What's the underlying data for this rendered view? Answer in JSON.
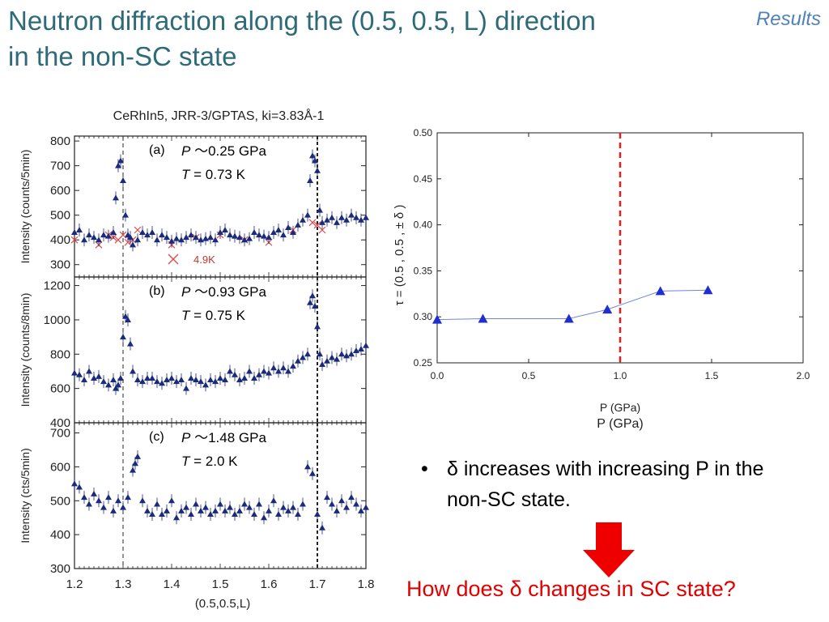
{
  "slide": {
    "title_line1": "Neutron  diffraction  along  the (0.5, 0.5, L) direction",
    "title_line2": "in the non-SC state",
    "tag": "Results",
    "bullet": "δ  increases  with  increasing  P  in  the  non-SC  state.",
    "bullet_symbol": "•",
    "question": "How  does  δ  changes  in  SC  state?",
    "arrow_icon": "red-down-arrow-icon",
    "arrow_color": "#ee0000"
  },
  "chart_data": [
    {
      "type": "scatter",
      "title": "CeRhIn5, JRR-3/GPTAS, ki=3.83Å-1",
      "xlabel": "(0.5,0.5,L)",
      "xlim": [
        1.2,
        1.8
      ],
      "xticks": [
        "1.2",
        "1.3",
        "1.4",
        "1.5",
        "1.6",
        "1.7",
        "1.8"
      ],
      "panels": [
        {
          "label": "(a)",
          "p_text": "0.25 GPa",
          "t_text": "= 0.73 K",
          "ylabel": "Intensity (counts/5min)",
          "ylim": [
            250,
            820
          ],
          "yticks": [
            "300",
            "400",
            "500",
            "600",
            "700",
            "800"
          ],
          "legend": "4.9K",
          "x": [
            1.2,
            1.21,
            1.22,
            1.23,
            1.24,
            1.25,
            1.26,
            1.27,
            1.28,
            1.285,
            1.29,
            1.295,
            1.3,
            1.305,
            1.31,
            1.315,
            1.32,
            1.33,
            1.34,
            1.35,
            1.36,
            1.37,
            1.38,
            1.39,
            1.4,
            1.41,
            1.42,
            1.43,
            1.44,
            1.45,
            1.46,
            1.47,
            1.48,
            1.49,
            1.5,
            1.51,
            1.52,
            1.53,
            1.54,
            1.55,
            1.56,
            1.57,
            1.58,
            1.59,
            1.6,
            1.61,
            1.62,
            1.63,
            1.64,
            1.65,
            1.66,
            1.67,
            1.68,
            1.685,
            1.69,
            1.695,
            1.7,
            1.705,
            1.71,
            1.72,
            1.73,
            1.74,
            1.75,
            1.76,
            1.77,
            1.78,
            1.79,
            1.8
          ],
          "y": [
            430,
            440,
            400,
            420,
            410,
            400,
            420,
            415,
            430,
            570,
            700,
            720,
            640,
            500,
            420,
            410,
            380,
            400,
            430,
            420,
            430,
            400,
            420,
            410,
            395,
            405,
            400,
            410,
            420,
            410,
            400,
            405,
            410,
            400,
            430,
            440,
            420,
            415,
            410,
            400,
            405,
            430,
            420,
            415,
            410,
            430,
            440,
            420,
            450,
            430,
            460,
            480,
            500,
            640,
            740,
            720,
            680,
            520,
            470,
            480,
            490,
            470,
            490,
            480,
            500,
            490,
            480,
            490
          ],
          "reference_series_name": "4.9K",
          "ref_x": [
            1.2,
            1.25,
            1.27,
            1.28,
            1.29,
            1.3,
            1.31,
            1.32,
            1.33,
            1.4,
            1.45,
            1.5,
            1.55,
            1.6,
            1.65,
            1.69,
            1.7,
            1.71
          ],
          "ref_y": [
            400,
            380,
            420,
            410,
            400,
            420,
            390,
            400,
            440,
            380,
            410,
            420,
            400,
            390,
            440,
            470,
            460,
            440
          ],
          "vlines": [
            1.3,
            1.7
          ]
        },
        {
          "label": "(b)",
          "p_text": "0.93 GPa",
          "t_text": "= 0.75 K",
          "ylabel": "Intensity (counts/8min)",
          "ylim": [
            400,
            1250
          ],
          "yticks": [
            "400",
            "600",
            "800",
            "1000",
            "1200"
          ],
          "x": [
            1.2,
            1.21,
            1.22,
            1.23,
            1.24,
            1.25,
            1.26,
            1.27,
            1.28,
            1.285,
            1.29,
            1.295,
            1.3,
            1.305,
            1.31,
            1.315,
            1.32,
            1.33,
            1.34,
            1.35,
            1.36,
            1.37,
            1.38,
            1.39,
            1.4,
            1.41,
            1.42,
            1.43,
            1.44,
            1.45,
            1.46,
            1.47,
            1.48,
            1.49,
            1.5,
            1.51,
            1.52,
            1.53,
            1.54,
            1.55,
            1.56,
            1.57,
            1.58,
            1.59,
            1.6,
            1.61,
            1.62,
            1.63,
            1.64,
            1.65,
            1.66,
            1.67,
            1.68,
            1.685,
            1.69,
            1.695,
            1.7,
            1.705,
            1.71,
            1.72,
            1.73,
            1.74,
            1.75,
            1.76,
            1.77,
            1.78,
            1.79,
            1.8
          ],
          "y": [
            690,
            680,
            650,
            700,
            660,
            670,
            640,
            620,
            650,
            600,
            620,
            660,
            900,
            1020,
            1000,
            860,
            700,
            650,
            640,
            660,
            660,
            640,
            630,
            650,
            660,
            640,
            650,
            600,
            660,
            650,
            640,
            620,
            650,
            640,
            660,
            650,
            700,
            680,
            650,
            660,
            700,
            660,
            680,
            700,
            690,
            720,
            700,
            720,
            700,
            730,
            760,
            780,
            800,
            1100,
            1140,
            1080,
            960,
            800,
            740,
            760,
            780,
            770,
            800,
            790,
            800,
            820,
            830,
            850
          ]
        },
        {
          "label": "(c)",
          "p_text": "1.48 GPa",
          "t_text": "= 2.0 K",
          "ylabel": "Intensity (cts/5min)",
          "ylim": [
            300,
            730
          ],
          "yticks": [
            "300",
            "400",
            "500",
            "600",
            "700"
          ],
          "x": [
            1.2,
            1.21,
            1.22,
            1.23,
            1.24,
            1.25,
            1.26,
            1.27,
            1.28,
            1.29,
            1.3,
            1.31,
            1.32,
            1.325,
            1.33,
            1.34,
            1.35,
            1.36,
            1.37,
            1.38,
            1.39,
            1.4,
            1.41,
            1.42,
            1.43,
            1.44,
            1.45,
            1.46,
            1.47,
            1.48,
            1.49,
            1.5,
            1.51,
            1.52,
            1.53,
            1.54,
            1.55,
            1.56,
            1.57,
            1.58,
            1.59,
            1.6,
            1.61,
            1.62,
            1.63,
            1.64,
            1.65,
            1.66,
            1.67,
            1.68,
            1.69,
            1.7,
            1.71,
            1.72,
            1.73,
            1.74,
            1.75,
            1.76,
            1.77,
            1.78,
            1.79,
            1.8
          ],
          "y": [
            550,
            540,
            510,
            490,
            520,
            500,
            480,
            510,
            470,
            500,
            480,
            510,
            590,
            610,
            630,
            500,
            470,
            460,
            490,
            460,
            470,
            500,
            450,
            470,
            480,
            460,
            490,
            470,
            480,
            460,
            470,
            490,
            470,
            480,
            460,
            470,
            490,
            480,
            460,
            490,
            450,
            470,
            500,
            460,
            480,
            470,
            480,
            460,
            490,
            600,
            580,
            460,
            420,
            510,
            490,
            470,
            500,
            480,
            510,
            490,
            470,
            480
          ],
          "vlines": [
            1.3,
            1.7
          ]
        }
      ]
    },
    {
      "type": "line",
      "xlabel": "P  (GPa)",
      "xlabel_repeat": "P (GPa)",
      "ylabel": "τ = (0.5 , 0.5 , ± δ )",
      "xlim": [
        0.0,
        2.0
      ],
      "ylim": [
        0.25,
        0.5
      ],
      "xticks": [
        "0.0",
        "0.5",
        "1.0",
        "1.5",
        "2.0"
      ],
      "yticks": [
        "0.25",
        "0.30",
        "0.35",
        "0.40",
        "0.45",
        "0.50"
      ],
      "x": [
        0.0,
        0.25,
        0.72,
        0.93,
        1.22,
        1.48
      ],
      "y": [
        0.297,
        0.298,
        0.298,
        0.308,
        0.328,
        0.329
      ],
      "vline": 1.0,
      "vline_color": "#e02020",
      "marker_color": "#1f2fcf",
      "line_color": "#6f86e0"
    }
  ]
}
